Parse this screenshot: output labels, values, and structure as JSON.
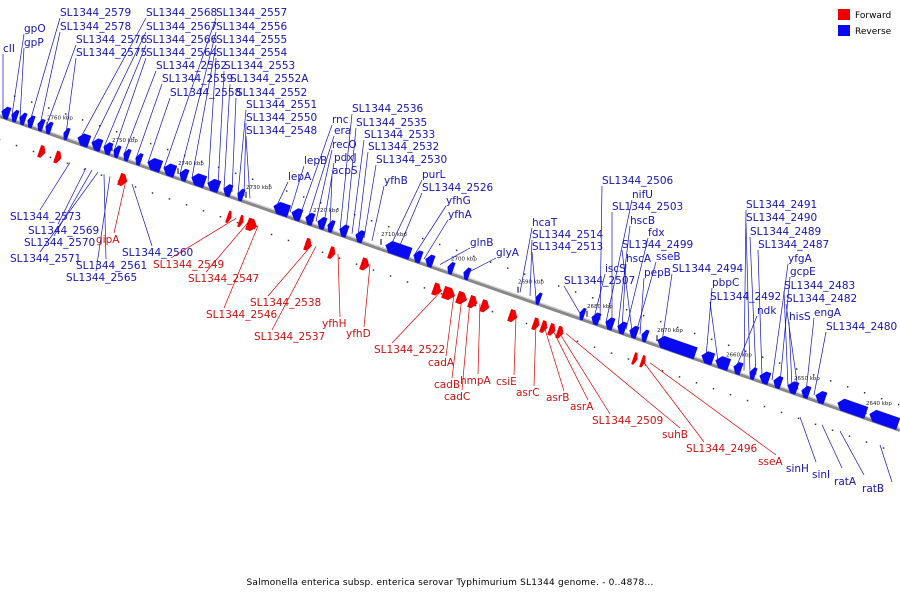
{
  "legend": {
    "forward": {
      "label": "Forward",
      "color": "#ee0000"
    },
    "reverse": {
      "label": "Reverse",
      "color": "#0a0af0"
    }
  },
  "caption": "Salmonella enterica subsp. enterica serovar Typhimurium SL1344 genome. - 0..4878...",
  "map": {
    "backbone_color": "#888888",
    "ticks": [
      "2760 kbp",
      "2750 kbp",
      "2740 kbp",
      "2730 kbp",
      "2720 kbp",
      "2710 kbp",
      "2700 kbp",
      "2690 kbp",
      "2680 kbp",
      "2670 kbp",
      "2660 kbp",
      "2650 kbp",
      "2640 kbp"
    ],
    "genes_reverse": [
      "cII",
      "gpO",
      "gpP",
      "SL1344_2579",
      "SL1344_2578",
      "SL1344_2576",
      "SL1344_2575",
      "SL1344_2568",
      "SL1344_2567",
      "SL1344_2566",
      "SL1344_2564",
      "SL1344_2562",
      "SL1344_2559",
      "SL1344_2558",
      "SL1344_2557",
      "SL1344_2556",
      "SL1344_2555",
      "SL1344_2554",
      "SL1344_2553",
      "SL1344_2552A",
      "SL1344_2552",
      "SL1344_2551",
      "SL1344_2550",
      "SL1344_2548",
      "lepA",
      "lepB",
      "rnc",
      "era",
      "recO",
      "pdxJ",
      "acpS",
      "SL1344_2536",
      "SL1344_2535",
      "SL1344_2533",
      "SL1344_2532",
      "SL1344_2530",
      "yfhB",
      "purL",
      "SL1344_2526",
      "yfhG",
      "yfhA",
      "glnB",
      "glyA",
      "hcaT",
      "SL1344_2514",
      "SL1344_2513",
      "SL1344_2507",
      "iscS",
      "SL1344_2506",
      "nifU",
      "SL1344_2503",
      "hscB",
      "hscA",
      "fdx",
      "SL1344_2499",
      "sseB",
      "pepB",
      "SL1344_2494",
      "pbpC",
      "SL1344_2492",
      "ndk",
      "SL1344_2491",
      "SL1344_2490",
      "SL1344_2489",
      "SL1344_2487",
      "yfgA",
      "gcpE",
      "SL1344_2483",
      "hisS",
      "SL1344_2482",
      "engA",
      "SL1344_2480",
      "SL1344_2573",
      "SL1344_2569",
      "SL1344_2570",
      "SL1344_2571",
      "SL1344_2561",
      "SL1344_2565",
      "SL1344_2560",
      "sinH",
      "sinI",
      "ratA",
      "ratB"
    ],
    "genes_forward": [
      "gipA",
      "SL1344_2549",
      "SL1344_2547",
      "SL1344_2546",
      "SL1344_2538",
      "SL1344_2537",
      "yfhH",
      "yfhD",
      "SL1344_2522",
      "cadA",
      "cadB",
      "cadC",
      "hmpA",
      "csiE",
      "asrC",
      "asrB",
      "asrA",
      "SL1344_2509",
      "suhB",
      "SL1344_2496",
      "sseA"
    ]
  }
}
